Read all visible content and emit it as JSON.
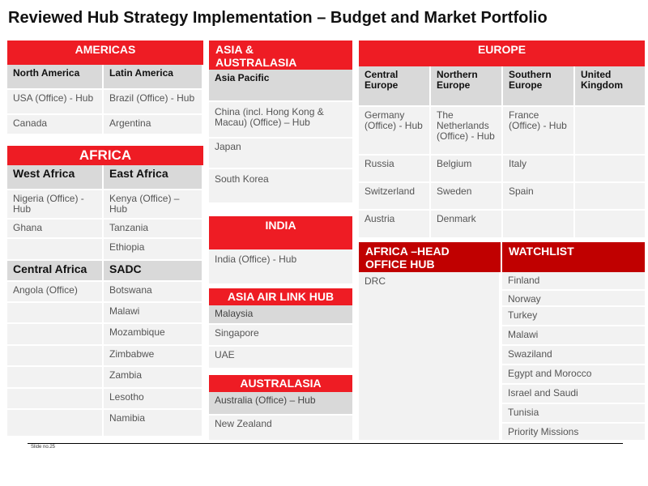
{
  "title": "Reviewed Hub Strategy Implementation – Budget and Market Portfolio",
  "americas": {
    "header": "AMERICAS",
    "col_headers": [
      "North America",
      "Latin America"
    ],
    "rows": [
      [
        "USA (Office) - Hub",
        "Brazil (Office) - Hub"
      ],
      [
        "Canada",
        "Argentina"
      ]
    ]
  },
  "africa": {
    "header": "AFRICA",
    "col_headers": [
      "West Africa",
      "East Africa"
    ],
    "rows": [
      [
        "Nigeria (Office) - Hub",
        "Kenya (Office) – Hub"
      ],
      [
        "Ghana",
        "Tanzania"
      ],
      [
        "",
        "Ethiopia"
      ]
    ],
    "col_headers2": [
      "Central Africa",
      "SADC"
    ],
    "rows2": [
      [
        "Angola (Office)",
        "Botswana"
      ],
      [
        "",
        "Malawi"
      ],
      [
        "",
        "Mozambique"
      ],
      [
        "",
        "Zimbabwe"
      ],
      [
        "",
        "Zambia"
      ],
      [
        "",
        "Lesotho"
      ],
      [
        "",
        "Namibia"
      ]
    ]
  },
  "asia_australasia": {
    "header": "ASIA & AUSTRALASIA",
    "sub": "Asia Pacific",
    "items": [
      "China (incl. Hong Kong & Macau) (Office) – Hub",
      "Japan",
      "South Korea"
    ]
  },
  "india": {
    "header": "INDIA",
    "items": [
      "India (Office) - Hub"
    ]
  },
  "asia_air_link": {
    "header": "ASIA AIR LINK HUB",
    "items": [
      "Malaysia",
      "Singapore",
      "UAE"
    ]
  },
  "australasia": {
    "header": "AUSTRALASIA",
    "items": [
      "Australia (Office) – Hub",
      "New Zealand"
    ]
  },
  "europe": {
    "header": "EUROPE",
    "col_headers": [
      "Central Europe",
      "Northern Europe",
      "Southern Europe",
      "United Kingdom"
    ],
    "rows": [
      [
        "Germany (Office) - Hub",
        "The Netherlands (Office) - Hub",
        "France (Office) - Hub",
        ""
      ],
      [
        "Russia",
        "Belgium",
        "Italy",
        ""
      ],
      [
        "Switzerland",
        "Sweden",
        "Spain",
        ""
      ],
      [
        "Austria",
        "Denmark",
        "",
        ""
      ]
    ]
  },
  "africa_head_office": {
    "header": "AFRICA –HEAD OFFICE HUB",
    "items": [
      "DRC"
    ]
  },
  "watchlist": {
    "header": "WATCHLIST",
    "items": [
      "Finland",
      "Norway",
      "Turkey",
      "Malawi",
      "Swaziland",
      "Egypt and Morocco",
      "Israel and Saudi",
      "Tunisia",
      "Priority Missions"
    ]
  },
  "footer": {
    "slide_no": "Slide no.25"
  },
  "colors": {
    "header_red": "#ee1c24",
    "header_dark_red": "#c00000",
    "cell_bg": "#f2f2f2",
    "subheader_bg": "#d9d9d9"
  }
}
